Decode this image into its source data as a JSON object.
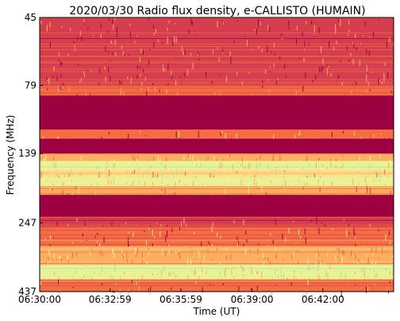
{
  "chart_data": {
    "type": "heatmap",
    "title": "2020/03/30  Radio flux density, e-CALLISTO (HUMAIN)",
    "xlabel": "Time (UT)",
    "ylabel": "Frequency (MHz)",
    "x_ticks": [
      "06:30:00",
      "06:32:59",
      "06:35:59",
      "06:39:00",
      "06:42:00"
    ],
    "x_tick_seconds": [
      0,
      179,
      359,
      540,
      720
    ],
    "x_range_seconds": [
      0,
      900
    ],
    "y_ticks": [
      "45",
      "79",
      "139",
      "247",
      "437"
    ],
    "y_scale": "log",
    "y_range_mhz": [
      45,
      437
    ],
    "grid": false,
    "colormap": [
      "#9e0142",
      "#d53e4f",
      "#f46d43",
      "#fdae61",
      "#fee08b",
      "#e6f598",
      "#abdda4"
    ],
    "frequency_bands": [
      {
        "from_mhz": 45,
        "to_mhz": 62,
        "level": 0.18
      },
      {
        "from_mhz": 62,
        "to_mhz": 79,
        "level": 0.22
      },
      {
        "from_mhz": 79,
        "to_mhz": 86,
        "level": 0.25
      },
      {
        "from_mhz": 86,
        "to_mhz": 114,
        "level": 0.0
      },
      {
        "from_mhz": 114,
        "to_mhz": 123,
        "level": 0.3
      },
      {
        "from_mhz": 123,
        "to_mhz": 139,
        "level": 0.0
      },
      {
        "from_mhz": 139,
        "to_mhz": 148,
        "level": 0.55
      },
      {
        "from_mhz": 148,
        "to_mhz": 158,
        "level": 0.8
      },
      {
        "from_mhz": 158,
        "to_mhz": 170,
        "level": 0.62
      },
      {
        "from_mhz": 170,
        "to_mhz": 182,
        "level": 0.85
      },
      {
        "from_mhz": 182,
        "to_mhz": 196,
        "level": 0.45
      },
      {
        "from_mhz": 196,
        "to_mhz": 220,
        "level": 0.0
      },
      {
        "from_mhz": 220,
        "to_mhz": 235,
        "level": 0.0
      },
      {
        "from_mhz": 235,
        "to_mhz": 255,
        "level": 0.2
      },
      {
        "from_mhz": 255,
        "to_mhz": 300,
        "level": 0.35
      },
      {
        "from_mhz": 300,
        "to_mhz": 350,
        "level": 0.55
      },
      {
        "from_mhz": 350,
        "to_mhz": 395,
        "level": 0.78
      },
      {
        "from_mhz": 395,
        "to_mhz": 415,
        "level": 0.35
      },
      {
        "from_mhz": 415,
        "to_mhz": 437,
        "level": 0.25
      }
    ]
  }
}
